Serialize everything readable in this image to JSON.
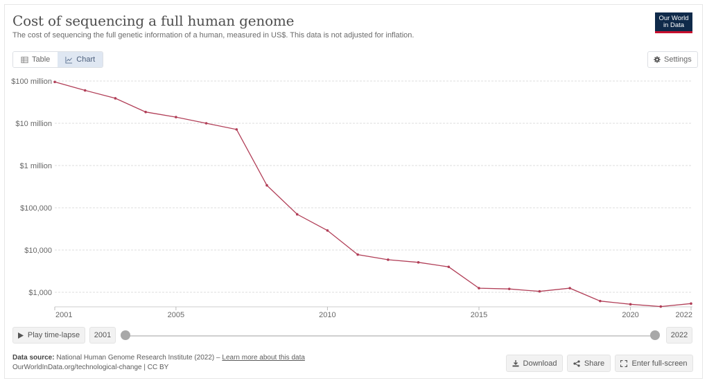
{
  "header": {
    "title": "Cost of sequencing a full human genome",
    "subtitle": "The cost of sequencing the full genetic information of a human, measured in US$. This data is not adjusted for inflation.",
    "logo_line1": "Our World",
    "logo_line2": "in Data"
  },
  "tabs": [
    {
      "label": "Table",
      "icon": "table-icon"
    },
    {
      "label": "Chart",
      "icon": "line-chart-icon",
      "active": true
    }
  ],
  "settings_label": "Settings",
  "chart_data": {
    "type": "line",
    "scale": "log",
    "color": "#b13e57",
    "ytick_values": [
      100000000,
      10000000,
      1000000,
      100000,
      10000,
      1000
    ],
    "ytick_labels": [
      "$100 million",
      "$10 million",
      "$1 million",
      "$100,000",
      "$10,000",
      "$1,000"
    ],
    "xtick_values": [
      2001,
      2005,
      2010,
      2015,
      2020,
      2022
    ],
    "xtick_labels": [
      "2001",
      "2005",
      "2010",
      "2015",
      "2020",
      "2022"
    ],
    "xlim": [
      2001,
      2022
    ],
    "grid": true,
    "series": [
      {
        "x": [
          2001,
          2002,
          2003,
          2004,
          2005,
          2006,
          2007,
          2008,
          2009,
          2010,
          2011,
          2012,
          2013,
          2014,
          2015,
          2016,
          2017,
          2018,
          2019,
          2020,
          2021,
          2022
        ],
        "y": [
          95300000,
          60000000,
          39000000,
          18500000,
          14000000,
          10000000,
          7150000,
          340000,
          70000,
          29000,
          7800,
          5900,
          5100,
          4000,
          1250,
          1200,
          1050,
          1250,
          620,
          520,
          460,
          540
        ]
      }
    ]
  },
  "timeline": {
    "play_label": "Play time-lapse",
    "start_year": "2001",
    "end_year": "2022"
  },
  "footer": {
    "source_label": "Data source:",
    "source_text": "National Human Genome Research Institute (2022) –",
    "learn_more": "Learn more about this data",
    "url_line": "OurWorldInData.org/technological-change | CC BY"
  },
  "actions": {
    "download": "Download",
    "share": "Share",
    "fullscreen": "Enter full-screen"
  }
}
